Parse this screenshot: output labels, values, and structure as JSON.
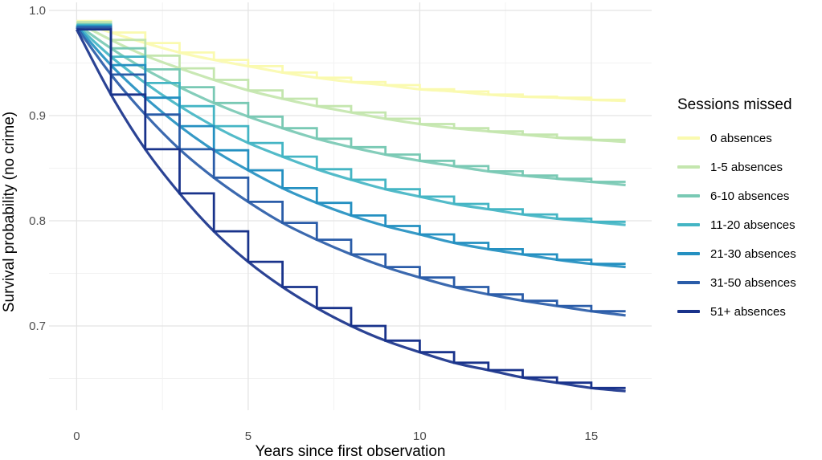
{
  "chart_data": {
    "type": "line",
    "subtype": "survival-curves-step-and-smooth",
    "title": "",
    "xlabel": "Years since first observation",
    "ylabel": "Survival probability (no crime)",
    "x_ticks": [
      0,
      5,
      10,
      15
    ],
    "x_tick_labels": [
      "0",
      "5",
      "10",
      "15"
    ],
    "x_minor": [
      2.5,
      7.5,
      12.5
    ],
    "y_ticks": [
      1.0,
      0.9,
      0.8,
      0.7
    ],
    "y_tick_labels": [
      "1.0",
      "0.9",
      "0.8",
      "0.7"
    ],
    "y_minor": [
      0.95,
      0.85,
      0.75,
      0.65
    ],
    "xlim": [
      -0.8,
      16.8
    ],
    "ylim": [
      0.62,
      1.008
    ],
    "grid": true,
    "legend_title": "Sessions missed",
    "legend_position": "right",
    "x_years": [
      0,
      1,
      2,
      3,
      4,
      5,
      6,
      7,
      8,
      9,
      10,
      11,
      12,
      13,
      14,
      15,
      16
    ],
    "series": [
      {
        "key": "0",
        "name": "0 absences",
        "color": "#FAFAAF",
        "values": [
          0.99,
          0.979,
          0.969,
          0.96,
          0.953,
          0.947,
          0.941,
          0.936,
          0.932,
          0.929,
          0.925,
          0.923,
          0.92,
          0.918,
          0.917,
          0.915,
          0.914
        ]
      },
      {
        "key": "1-5",
        "name": "1-5 absences",
        "color": "#C4E6AE",
        "values": [
          0.989,
          0.972,
          0.957,
          0.945,
          0.934,
          0.924,
          0.916,
          0.909,
          0.903,
          0.897,
          0.892,
          0.888,
          0.885,
          0.882,
          0.879,
          0.877,
          0.875
        ]
      },
      {
        "key": "6-10",
        "name": "6-10 absences",
        "color": "#79C9B4",
        "values": [
          0.987,
          0.964,
          0.944,
          0.927,
          0.912,
          0.899,
          0.888,
          0.878,
          0.87,
          0.863,
          0.857,
          0.852,
          0.847,
          0.843,
          0.84,
          0.837,
          0.834
        ]
      },
      {
        "key": "11-20",
        "name": "11-20 absences",
        "color": "#44B5C4",
        "values": [
          0.986,
          0.956,
          0.931,
          0.909,
          0.89,
          0.874,
          0.861,
          0.849,
          0.839,
          0.83,
          0.823,
          0.816,
          0.811,
          0.806,
          0.802,
          0.799,
          0.796
        ]
      },
      {
        "key": "21-30",
        "name": "21-30 absences",
        "color": "#2490C1",
        "values": [
          0.985,
          0.948,
          0.917,
          0.89,
          0.867,
          0.848,
          0.831,
          0.817,
          0.805,
          0.795,
          0.787,
          0.779,
          0.773,
          0.768,
          0.763,
          0.759,
          0.756
        ]
      },
      {
        "key": "31-50",
        "name": "31-50 absences",
        "color": "#2A5CA8",
        "values": [
          0.984,
          0.939,
          0.901,
          0.868,
          0.841,
          0.818,
          0.798,
          0.782,
          0.768,
          0.756,
          0.746,
          0.737,
          0.73,
          0.724,
          0.719,
          0.714,
          0.71
        ]
      },
      {
        "key": "51plus",
        "name": "51+ absences",
        "color": "#19338B",
        "values": [
          0.982,
          0.92,
          0.868,
          0.826,
          0.79,
          0.761,
          0.737,
          0.717,
          0.7,
          0.686,
          0.675,
          0.665,
          0.658,
          0.651,
          0.646,
          0.641,
          0.638
        ]
      }
    ]
  },
  "colors": {
    "background": "#FFFFFF",
    "grid_major": "#E4E4E4",
    "grid_minor": "#F2F2F2",
    "tick_text": "#4D4D4D",
    "axis_title_text": "#000000"
  }
}
